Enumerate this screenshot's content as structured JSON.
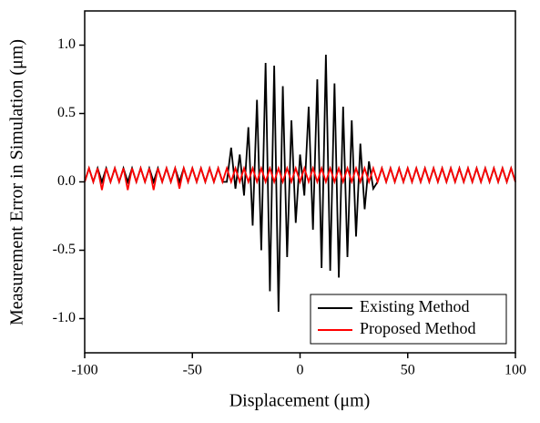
{
  "chart_data": {
    "type": "line",
    "x_label": "Displacement (μm)",
    "y_label": "Measurement Error in Simulation (μm)",
    "x": [
      -100,
      -98,
      -96,
      -94,
      -92,
      -90,
      -88,
      -86,
      -84,
      -82,
      -80,
      -78,
      -76,
      -74,
      -72,
      -70,
      -68,
      -66,
      -64,
      -62,
      -60,
      -58,
      -56,
      -54,
      -52,
      -50,
      -48,
      -46,
      -44,
      -42,
      -40,
      -38,
      -36,
      -34,
      -32,
      -30,
      -28,
      -26,
      -24,
      -22,
      -20,
      -18,
      -16,
      -14,
      -12,
      -10,
      -8,
      -6,
      -4,
      -2,
      0,
      2,
      4,
      6,
      8,
      10,
      12,
      14,
      16,
      18,
      20,
      22,
      24,
      26,
      28,
      30,
      32,
      34,
      36,
      38,
      40,
      42,
      44,
      46,
      48,
      50,
      52,
      54,
      56,
      58,
      60,
      62,
      64,
      66,
      68,
      70,
      72,
      74,
      76,
      78,
      80,
      82,
      84,
      86,
      88,
      90,
      92,
      94,
      96,
      98,
      100
    ],
    "series": [
      {
        "name": "Existing Method",
        "color": "#000000",
        "values": [
          0,
          0.1,
          0,
          0.1,
          0,
          0.1,
          0,
          0.1,
          0,
          0.1,
          0,
          0.1,
          0,
          0.1,
          0,
          0.1,
          0,
          0.1,
          0,
          0.1,
          0,
          0.1,
          0,
          0.1,
          0,
          0.1,
          0,
          0.1,
          0,
          0.1,
          0,
          0.1,
          0,
          0,
          0.25,
          -0.05,
          0.2,
          -0.1,
          0.4,
          -0.32,
          0.6,
          -0.5,
          0.87,
          -0.8,
          0.85,
          -0.95,
          0.7,
          -0.55,
          0.45,
          -0.3,
          0.2,
          -0.1,
          0.55,
          -0.35,
          0.75,
          -0.63,
          0.93,
          -0.65,
          0.72,
          -0.7,
          0.55,
          -0.55,
          0.45,
          -0.4,
          0.28,
          -0.2,
          0.15,
          -0.05,
          0,
          0.1,
          0,
          0.1,
          0,
          0.1,
          0,
          0.1,
          0,
          0.1,
          0,
          0.1,
          0,
          0.1,
          0,
          0.1,
          0,
          0.1,
          0,
          0.1,
          0,
          0.1,
          0,
          0.1,
          0,
          0.1,
          0,
          0.1,
          0,
          0.1,
          0,
          0.1,
          0
        ]
      },
      {
        "name": "Proposed Method",
        "color": "#ff0000",
        "values": [
          0,
          0.1,
          0,
          0.1,
          -0.06,
          0.1,
          0,
          0.1,
          0,
          0.1,
          -0.06,
          0.1,
          0,
          0.1,
          0,
          0.1,
          -0.06,
          0.1,
          0,
          0.1,
          0,
          0.1,
          -0.05,
          0.1,
          0,
          0.1,
          0,
          0.1,
          0,
          0.1,
          0,
          0.1,
          0,
          0.1,
          0,
          0.1,
          0,
          0.1,
          0,
          0.1,
          0,
          0.1,
          0,
          0.1,
          0,
          0.1,
          0,
          0.1,
          0,
          0.1,
          0,
          0.1,
          0,
          0.1,
          0,
          0.1,
          0,
          0.1,
          0,
          0.1,
          0,
          0.1,
          0,
          0.1,
          0,
          0.1,
          0,
          0.1,
          0,
          0.1,
          0,
          0.1,
          0,
          0.1,
          0,
          0.1,
          0,
          0.1,
          0,
          0.1,
          0,
          0.1,
          0,
          0.1,
          0,
          0.1,
          0,
          0.1,
          0,
          0.1,
          0,
          0.1,
          0,
          0.1,
          0,
          0.1,
          0,
          0.1,
          0,
          0.1,
          0
        ]
      }
    ],
    "xlim": [
      -100,
      100
    ],
    "ylim": [
      -1.25,
      1.25
    ],
    "xticks": [
      -100,
      -50,
      0,
      50,
      100
    ],
    "yticks": [
      {
        "value": -1,
        "label": "-1.0"
      },
      {
        "value": -0.5,
        "label": "-0.5"
      },
      {
        "value": 0,
        "label": "0.0"
      },
      {
        "value": 0.5,
        "label": "0.5"
      },
      {
        "value": 1,
        "label": "1.0"
      }
    ],
    "legend": "lower right"
  }
}
